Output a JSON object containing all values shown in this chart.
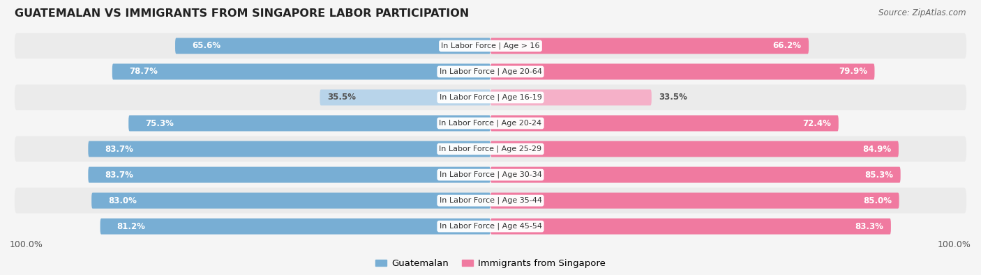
{
  "title": "GUATEMALAN VS IMMIGRANTS FROM SINGAPORE LABOR PARTICIPATION",
  "source": "Source: ZipAtlas.com",
  "categories": [
    "In Labor Force | Age > 16",
    "In Labor Force | Age 20-64",
    "In Labor Force | Age 16-19",
    "In Labor Force | Age 20-24",
    "In Labor Force | Age 25-29",
    "In Labor Force | Age 30-34",
    "In Labor Force | Age 35-44",
    "In Labor Force | Age 45-54"
  ],
  "guatemalan": [
    65.6,
    78.7,
    35.5,
    75.3,
    83.7,
    83.7,
    83.0,
    81.2
  ],
  "singapore": [
    66.2,
    79.9,
    33.5,
    72.4,
    84.9,
    85.3,
    85.0,
    83.3
  ],
  "guatemalan_color": "#78aed4",
  "guatemalan_light_color": "#b8d4ea",
  "singapore_color": "#f07aa0",
  "singapore_light_color": "#f5b0c8",
  "bar_height": 0.62,
  "row_bg_odd": "#ebebeb",
  "row_bg_even": "#f5f5f5",
  "background_color": "#f5f5f5",
  "max_val": 100.0,
  "light_threshold": 50,
  "figsize": [
    14.06,
    3.95
  ]
}
